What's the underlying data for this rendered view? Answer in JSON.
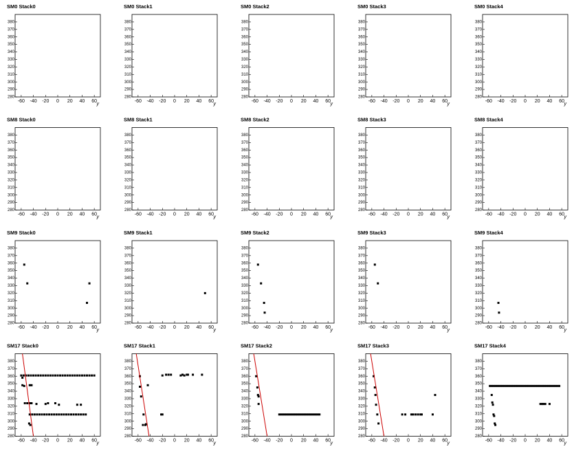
{
  "chart_data": [
    {
      "type": "scatter",
      "title": "SM0 Stack0",
      "xlabel": "y",
      "xlim": [
        -70,
        70
      ],
      "ylim": [
        280,
        390
      ],
      "xticks": [
        -60,
        -40,
        -20,
        0,
        20,
        40,
        60
      ],
      "yticks": [
        280,
        290,
        300,
        310,
        320,
        330,
        340,
        350,
        360,
        370,
        380
      ],
      "series": []
    },
    {
      "type": "scatter",
      "title": "SM0 Stack1",
      "xlabel": "y",
      "xlim": [
        -70,
        70
      ],
      "ylim": [
        280,
        390
      ],
      "xticks": [
        -60,
        -40,
        -20,
        0,
        20,
        40,
        60
      ],
      "yticks": [
        280,
        290,
        300,
        310,
        320,
        330,
        340,
        350,
        360,
        370,
        380
      ],
      "series": []
    },
    {
      "type": "scatter",
      "title": "SM0 Stack2",
      "xlabel": "y",
      "xlim": [
        -70,
        70
      ],
      "ylim": [
        280,
        390
      ],
      "xticks": [
        -60,
        -40,
        -20,
        0,
        20,
        40,
        60
      ],
      "yticks": [
        280,
        290,
        300,
        310,
        320,
        330,
        340,
        350,
        360,
        370,
        380
      ],
      "series": []
    },
    {
      "type": "scatter",
      "title": "SM0 Stack3",
      "xlabel": "y",
      "xlim": [
        -70,
        70
      ],
      "ylim": [
        280,
        390
      ],
      "xticks": [
        -60,
        -40,
        -20,
        0,
        20,
        40,
        60
      ],
      "yticks": [
        280,
        290,
        300,
        310,
        320,
        330,
        340,
        350,
        360,
        370,
        380
      ],
      "series": []
    },
    {
      "type": "scatter",
      "title": "SM0 Stack4",
      "xlabel": "y",
      "xlim": [
        -70,
        70
      ],
      "ylim": [
        280,
        390
      ],
      "xticks": [
        -60,
        -40,
        -20,
        0,
        20,
        40,
        60
      ],
      "yticks": [
        280,
        290,
        300,
        310,
        320,
        330,
        340,
        350,
        360,
        370,
        380
      ],
      "series": []
    },
    {
      "type": "scatter",
      "title": "SM8 Stack0",
      "xlabel": "y",
      "xlim": [
        -70,
        70
      ],
      "ylim": [
        280,
        390
      ],
      "xticks": [
        -60,
        -40,
        -20,
        0,
        20,
        40,
        60
      ],
      "yticks": [
        280,
        290,
        300,
        310,
        320,
        330,
        340,
        350,
        360,
        370,
        380
      ],
      "series": []
    },
    {
      "type": "scatter",
      "title": "SM8 Stack1",
      "xlabel": "y",
      "xlim": [
        -70,
        70
      ],
      "ylim": [
        280,
        390
      ],
      "xticks": [
        -60,
        -40,
        -20,
        0,
        20,
        40,
        60
      ],
      "yticks": [
        280,
        290,
        300,
        310,
        320,
        330,
        340,
        350,
        360,
        370,
        380
      ],
      "series": []
    },
    {
      "type": "scatter",
      "title": "SM8 Stack2",
      "xlabel": "y",
      "xlim": [
        -70,
        70
      ],
      "ylim": [
        280,
        390
      ],
      "xticks": [
        -60,
        -40,
        -20,
        0,
        20,
        40,
        60
      ],
      "yticks": [
        280,
        290,
        300,
        310,
        320,
        330,
        340,
        350,
        360,
        370,
        380
      ],
      "series": []
    },
    {
      "type": "scatter",
      "title": "SM8 Stack3",
      "xlabel": "y",
      "xlim": [
        -70,
        70
      ],
      "ylim": [
        280,
        390
      ],
      "xticks": [
        -60,
        -40,
        -20,
        0,
        20,
        40,
        60
      ],
      "yticks": [
        280,
        290,
        300,
        310,
        320,
        330,
        340,
        350,
        360,
        370,
        380
      ],
      "series": []
    },
    {
      "type": "scatter",
      "title": "SM8 Stack4",
      "xlabel": "y",
      "xlim": [
        -70,
        70
      ],
      "ylim": [
        280,
        390
      ],
      "xticks": [
        -60,
        -40,
        -20,
        0,
        20,
        40,
        60
      ],
      "yticks": [
        280,
        290,
        300,
        310,
        320,
        330,
        340,
        350,
        360,
        370,
        380
      ],
      "series": []
    },
    {
      "type": "scatter",
      "title": "SM9 Stack0",
      "xlabel": "y",
      "xlim": [
        -70,
        70
      ],
      "ylim": [
        280,
        390
      ],
      "xticks": [
        -60,
        -40,
        -20,
        0,
        20,
        40,
        60
      ],
      "yticks": [
        280,
        290,
        300,
        310,
        320,
        330,
        340,
        350,
        360,
        370,
        380
      ],
      "series": [
        {
          "color": "#000000",
          "mode": "markers",
          "x": [
            -55,
            -50,
            52,
            48
          ],
          "y": [
            358,
            333,
            333,
            307
          ]
        }
      ]
    },
    {
      "type": "scatter",
      "title": "SM9 Stack1",
      "xlabel": "y",
      "xlim": [
        -70,
        70
      ],
      "ylim": [
        280,
        390
      ],
      "xticks": [
        -60,
        -40,
        -20,
        0,
        20,
        40,
        60
      ],
      "yticks": [
        280,
        290,
        300,
        310,
        320,
        330,
        340,
        350,
        360,
        370,
        380
      ],
      "series": [
        {
          "color": "#000000",
          "mode": "markers",
          "x": [
            50
          ],
          "y": [
            320
          ]
        }
      ]
    },
    {
      "type": "scatter",
      "title": "SM9 Stack2",
      "xlabel": "y",
      "xlim": [
        -70,
        70
      ],
      "ylim": [
        280,
        390
      ],
      "xticks": [
        -60,
        -40,
        -20,
        0,
        20,
        40,
        60
      ],
      "yticks": [
        280,
        290,
        300,
        310,
        320,
        330,
        340,
        350,
        360,
        370,
        380
      ],
      "series": [
        {
          "color": "#000000",
          "mode": "markers",
          "x": [
            -55,
            -50,
            -45,
            -44
          ],
          "y": [
            358,
            333,
            307,
            294
          ]
        }
      ]
    },
    {
      "type": "scatter",
      "title": "SM9 Stack3",
      "xlabel": "y",
      "xlim": [
        -70,
        70
      ],
      "ylim": [
        280,
        390
      ],
      "xticks": [
        -60,
        -40,
        -20,
        0,
        20,
        40,
        60
      ],
      "yticks": [
        280,
        290,
        300,
        310,
        320,
        330,
        340,
        350,
        360,
        370,
        380
      ],
      "series": [
        {
          "color": "#000000",
          "mode": "markers",
          "x": [
            -55,
            -50
          ],
          "y": [
            358,
            333
          ]
        }
      ]
    },
    {
      "type": "scatter",
      "title": "SM9 Stack4",
      "xlabel": "y",
      "xlim": [
        -70,
        70
      ],
      "ylim": [
        280,
        390
      ],
      "xticks": [
        -60,
        -40,
        -20,
        0,
        20,
        40,
        60
      ],
      "yticks": [
        280,
        290,
        300,
        310,
        320,
        330,
        340,
        350,
        360,
        370,
        380
      ],
      "series": [
        {
          "color": "#000000",
          "mode": "markers",
          "x": [
            -44,
            -43
          ],
          "y": [
            307,
            294
          ]
        }
      ]
    },
    {
      "type": "scatter",
      "title": "SM17 Stack0",
      "xlabel": "y",
      "xlim": [
        -70,
        70
      ],
      "ylim": [
        280,
        390
      ],
      "xticks": [
        -60,
        -40,
        -20,
        0,
        20,
        40,
        60
      ],
      "yticks": [
        280,
        290,
        300,
        310,
        320,
        330,
        340,
        350,
        360,
        370,
        380
      ],
      "series": [
        {
          "color": "#000000",
          "mode": "markers",
          "x": [
            -60,
            -56,
            -52,
            -48,
            -44,
            -40,
            -36,
            -32,
            -28,
            -24,
            -20,
            -16,
            -12,
            -8,
            -4,
            0,
            4,
            8,
            12,
            16,
            20,
            24,
            28,
            32,
            36,
            40,
            44,
            48,
            52,
            56,
            60,
            -46,
            -42,
            -38,
            -34,
            -30,
            -26,
            -22,
            -18,
            -14,
            -10,
            -6,
            -2,
            2,
            6,
            10,
            14,
            18,
            22,
            26,
            30,
            34,
            38,
            42,
            46,
            -58,
            -58,
            -55,
            -46,
            -43,
            -54,
            -50,
            -46,
            -43,
            -35,
            -20,
            -16,
            -4,
            2,
            32,
            38,
            -47,
            -45
          ],
          "y": [
            361,
            361,
            361,
            361,
            361,
            361,
            361,
            361,
            361,
            361,
            361,
            361,
            361,
            361,
            361,
            361,
            361,
            361,
            361,
            361,
            361,
            361,
            361,
            361,
            361,
            361,
            361,
            361,
            361,
            361,
            361,
            309,
            309,
            309,
            309,
            309,
            309,
            309,
            309,
            309,
            309,
            309,
            309,
            309,
            309,
            309,
            309,
            309,
            309,
            309,
            309,
            309,
            309,
            309,
            309,
            358,
            348,
            347,
            348,
            348,
            324,
            324,
            324,
            324,
            323,
            323,
            324,
            324,
            322,
            322,
            322,
            297,
            295
          ]
        },
        {
          "color": "#cc0000",
          "mode": "line",
          "x": [
            -58,
            -40
          ],
          "y": [
            390,
            280
          ]
        }
      ]
    },
    {
      "type": "scatter",
      "title": "SM17 Stack1",
      "xlabel": "y",
      "xlim": [
        -70,
        70
      ],
      "ylim": [
        280,
        390
      ],
      "xticks": [
        -60,
        -40,
        -20,
        0,
        20,
        40,
        60
      ],
      "yticks": [
        280,
        290,
        300,
        310,
        320,
        330,
        340,
        350,
        360,
        370,
        380
      ],
      "series": [
        {
          "color": "#000000",
          "mode": "markers",
          "x": [
            -57,
            -57,
            -55,
            -51,
            -52,
            -48,
            -44,
            -20,
            -14,
            -10,
            -6,
            10,
            13,
            16,
            20,
            22,
            30,
            45,
            -22,
            -20,
            -47
          ],
          "y": [
            360,
            346,
            333,
            309,
            295,
            295,
            348,
            361,
            362,
            362,
            362,
            361,
            362,
            361,
            362,
            362,
            362,
            362,
            309,
            309,
            296
          ]
        },
        {
          "color": "#cc0000",
          "mode": "line",
          "x": [
            -63,
            -42
          ],
          "y": [
            390,
            280
          ]
        }
      ]
    },
    {
      "type": "scatter",
      "title": "SM17 Stack2",
      "xlabel": "y",
      "xlim": [
        -70,
        70
      ],
      "ylim": [
        280,
        390
      ],
      "xticks": [
        -60,
        -40,
        -20,
        0,
        20,
        40,
        60
      ],
      "yticks": [
        280,
        290,
        300,
        310,
        320,
        330,
        340,
        350,
        360,
        370,
        380
      ],
      "series": [
        {
          "color": "#000000",
          "mode": "markers",
          "x": [
            -58,
            -56,
            -55,
            -54,
            -54,
            -20,
            -17,
            -14,
            -11,
            -8,
            -5,
            -2,
            1,
            4,
            7,
            10,
            13,
            16,
            19,
            22,
            25,
            28,
            31,
            34,
            37,
            40,
            43,
            46
          ],
          "y": [
            360,
            345,
            335,
            333,
            323,
            309,
            309,
            309,
            309,
            309,
            309,
            309,
            309,
            309,
            309,
            309,
            309,
            309,
            309,
            309,
            309,
            309,
            309,
            309,
            309,
            309,
            309,
            309
          ]
        },
        {
          "color": "#cc0000",
          "mode": "line",
          "x": [
            -62,
            -40
          ],
          "y": [
            390,
            280
          ]
        }
      ]
    },
    {
      "type": "scatter",
      "title": "SM17 Stack3",
      "xlabel": "y",
      "xlim": [
        -70,
        70
      ],
      "ylim": [
        280,
        390
      ],
      "xticks": [
        -60,
        -40,
        -20,
        0,
        20,
        40,
        60
      ],
      "yticks": [
        280,
        290,
        300,
        310,
        320,
        330,
        340,
        350,
        360,
        370,
        380
      ],
      "series": [
        {
          "color": "#000000",
          "mode": "markers",
          "x": [
            -57,
            -55,
            -54,
            -53,
            -51,
            -49,
            -10,
            -5,
            5,
            8,
            12,
            16,
            20,
            22,
            40,
            44
          ],
          "y": [
            360,
            345,
            335,
            322,
            309,
            297,
            309,
            309,
            309,
            309,
            309,
            309,
            309,
            309,
            309,
            335
          ]
        },
        {
          "color": "#cc0000",
          "mode": "line",
          "x": [
            -62,
            -40
          ],
          "y": [
            390,
            280
          ]
        }
      ]
    },
    {
      "type": "scatter",
      "title": "SM17 Stack4",
      "xlabel": "y",
      "xlim": [
        -70,
        70
      ],
      "ylim": [
        280,
        390
      ],
      "xticks": [
        -60,
        -40,
        -20,
        0,
        20,
        40,
        60
      ],
      "yticks": [
        280,
        290,
        300,
        310,
        320,
        330,
        340,
        350,
        360,
        370,
        380
      ],
      "series": [
        {
          "color": "#000000",
          "mode": "markers",
          "x": [
            -58,
            -55,
            -52,
            -49,
            -46,
            -43,
            -40,
            -37,
            -34,
            -31,
            -28,
            -25,
            -22,
            -19,
            -16,
            -13,
            -10,
            -7,
            -4,
            -1,
            2,
            5,
            8,
            11,
            14,
            17,
            20,
            23,
            26,
            29,
            32,
            35,
            38,
            41,
            44,
            47,
            50,
            53,
            56,
            -55,
            -54,
            -53,
            -52,
            -51,
            -50,
            -49,
            25,
            28,
            30,
            33,
            40
          ],
          "y": [
            347,
            347,
            347,
            347,
            347,
            347,
            347,
            347,
            347,
            347,
            347,
            347,
            347,
            347,
            347,
            347,
            347,
            347,
            347,
            347,
            347,
            347,
            347,
            347,
            347,
            347,
            347,
            347,
            347,
            347,
            347,
            347,
            347,
            347,
            347,
            347,
            347,
            347,
            347,
            335,
            325,
            322,
            309,
            307,
            297,
            295,
            323,
            323,
            323,
            323,
            323
          ]
        }
      ]
    }
  ]
}
